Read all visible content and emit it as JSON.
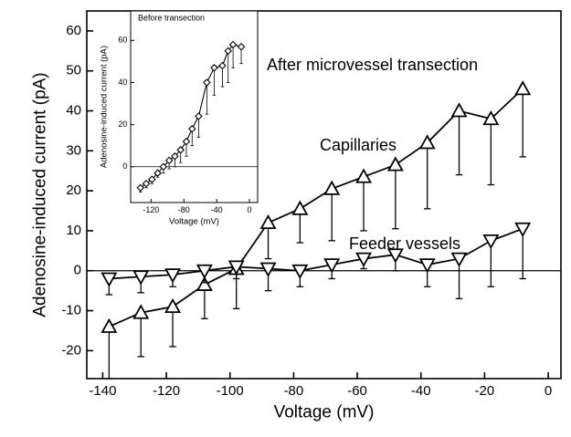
{
  "chart_data": [
    {
      "type": "line",
      "annotations": [
        "After microvessel transection"
      ],
      "xlabel": "Voltage (mV)",
      "ylabel": "Adenosine-induced current (pA)",
      "xlim": [
        -145,
        4
      ],
      "xticks": [
        -140,
        -120,
        -100,
        -80,
        -60,
        -40,
        -20,
        0
      ],
      "ylim": [
        -27,
        65
      ],
      "yticks": [
        -20,
        -10,
        0,
        10,
        20,
        30,
        40,
        50,
        60
      ],
      "x": [
        -138,
        -128,
        -118,
        -108,
        -98,
        -88,
        -78,
        -68,
        -58,
        -48,
        -38,
        -28,
        -18,
        -8
      ],
      "series": [
        {
          "name": "Capillaries",
          "color": "#000000",
          "marker": "triangle-up",
          "values": [
            -14,
            -10.5,
            -9,
            -3.5,
            0.5,
            12,
            15.5,
            20.5,
            23.5,
            26.5,
            32,
            40,
            38,
            45.5
          ],
          "errors": [
            13,
            11,
            10,
            8.5,
            10,
            9,
            8.5,
            13,
            13.5,
            16,
            16.5,
            16,
            16.5,
            17
          ]
        },
        {
          "name": "Feeder vessels",
          "color": "#000000",
          "marker": "triangle-down",
          "values": [
            -2,
            -1.5,
            -1,
            0,
            1,
            0.5,
            0,
            1.5,
            3,
            4,
            1.5,
            3,
            7.5,
            10.5
          ],
          "errors": [
            4,
            4,
            3,
            3,
            3,
            5.5,
            4,
            3.5,
            2.5,
            4,
            5.5,
            10,
            11.5,
            12.5
          ]
        }
      ]
    },
    {
      "type": "line",
      "title": "Before transection",
      "xlabel": "Voltage (mV)",
      "ylabel": "Adenosine-induced current (pA)",
      "xlim": [
        -145,
        10
      ],
      "xticks": [
        -120,
        -80,
        -40,
        0
      ],
      "ylim": [
        -17,
        74
      ],
      "yticks": [
        0,
        20,
        40,
        60
      ],
      "x": [
        -133,
        -126,
        -119,
        -112,
        -105,
        -98,
        -91,
        -84,
        -77,
        -70,
        -62,
        -52,
        -43,
        -33,
        -26,
        -20,
        -10
      ],
      "series": [
        {
          "color": "#000000",
          "marker": "diamond",
          "values": [
            -10,
            -8,
            -6,
            -3,
            0,
            3,
            5,
            8,
            12,
            18,
            24,
            40,
            47,
            48,
            55,
            58,
            57
          ],
          "errors": [
            2,
            2,
            2,
            2,
            3,
            4,
            5,
            6,
            7,
            8,
            10,
            15,
            13,
            10,
            15,
            11,
            8
          ]
        }
      ]
    }
  ]
}
